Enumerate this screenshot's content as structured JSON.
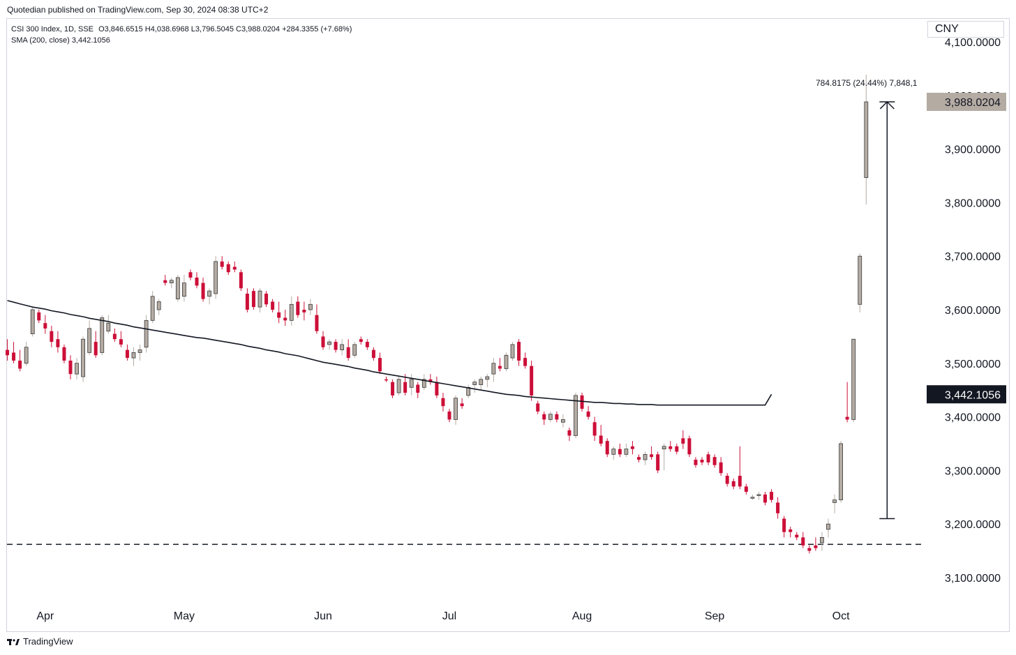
{
  "header": {
    "publisher_line": "Quotedian published on TradingView.com, Sep 30, 2024 08:38 UTC+2",
    "symbol_line": "CSI 300 Index, 1D, SSE",
    "ohlc_line": "O3,846.6515 H4,038.6968 L3,796.5045 C3,988.0204 +284.3355 (+7.68%)",
    "sma_line": "SMA (200, close)  3,442.1056",
    "currency": "CNY"
  },
  "footer": {
    "brand": "TradingView"
  },
  "colors": {
    "up": "#b5aca4",
    "down": "#cc0f38",
    "sma": "#131722",
    "last_price_bg": "#b4aba3",
    "sma_label_bg": "#131722"
  },
  "chart_data": {
    "type": "candlestick",
    "title": "CSI 300 Index, 1D, SSE",
    "y_range": [
      3040,
      4130
    ],
    "y_ticks": [
      {
        "value": 3100,
        "label": "3,100.0000"
      },
      {
        "value": 3200,
        "label": "3,200.0000"
      },
      {
        "value": 3300,
        "label": "3,300.0000"
      },
      {
        "value": 3400,
        "label": "3,400.0000"
      },
      {
        "value": 3500,
        "label": "3,500.0000"
      },
      {
        "value": 3600,
        "label": "3,600.0000"
      },
      {
        "value": 3700,
        "label": "3,700.0000"
      },
      {
        "value": 3800,
        "label": "3,800.0000"
      },
      {
        "value": 3900,
        "label": "3,900.0000"
      },
      {
        "value": 4000,
        "label": "4,000.0000"
      },
      {
        "value": 4100,
        "label": "4,100.0000"
      }
    ],
    "x_month_ticks": [
      {
        "label": "Apr",
        "index": 6
      },
      {
        "label": "May",
        "index": 28
      },
      {
        "label": "Jun",
        "index": 50
      },
      {
        "label": "Jul",
        "index": 70
      },
      {
        "label": "Aug",
        "index": 91
      },
      {
        "label": "Sep",
        "index": 112
      },
      {
        "label": "Oct",
        "index": 132
      }
    ],
    "last_price": {
      "value": 3988.0204,
      "label": "3,988.0204"
    },
    "sma_last": {
      "value": 3442.1056,
      "label": "3,442.1056"
    },
    "measure": {
      "from": 3210,
      "to": 3988,
      "label": "784.8175 (24.44%) 7,848,1"
    },
    "support_level": 3162,
    "sma_values": [
      3617,
      3614,
      3611,
      3608,
      3605,
      3603,
      3601,
      3598,
      3596,
      3594,
      3591,
      3589,
      3587,
      3584,
      3582,
      3580,
      3578,
      3575,
      3573,
      3571,
      3568,
      3566,
      3564,
      3562,
      3560,
      3558,
      3556,
      3554,
      3552,
      3550,
      3548,
      3547,
      3545,
      3543,
      3541,
      3539,
      3537,
      3535,
      3532,
      3530,
      3528,
      3525,
      3523,
      3521,
      3518,
      3516,
      3514,
      3511,
      3508,
      3505,
      3502,
      3500,
      3498,
      3496,
      3494,
      3491,
      3489,
      3487,
      3484,
      3482,
      3480,
      3478,
      3476,
      3474,
      3472,
      3470,
      3468,
      3466,
      3464,
      3462,
      3460,
      3458,
      3456,
      3454,
      3452,
      3450,
      3448,
      3446,
      3444,
      3442,
      3441,
      3440,
      3438,
      3437,
      3436,
      3435,
      3434,
      3433,
      3432,
      3431,
      3430,
      3429,
      3428,
      3427,
      3427,
      3426,
      3425,
      3425,
      3424,
      3424,
      3423,
      3423,
      3423,
      3422,
      3422,
      3422,
      3422,
      3422,
      3422,
      3422,
      3422,
      3422,
      3422,
      3422,
      3422,
      3422,
      3422,
      3422,
      3422,
      3422,
      3422,
      3442
    ],
    "candles": [
      [
        3525,
        3545,
        3505,
        3515
      ],
      [
        3520,
        3540,
        3500,
        3505
      ],
      [
        3505,
        3525,
        3485,
        3490
      ],
      [
        3500,
        3540,
        3495,
        3530
      ],
      [
        3555,
        3605,
        3550,
        3600
      ],
      [
        3595,
        3600,
        3575,
        3580
      ],
      [
        3575,
        3590,
        3555,
        3565
      ],
      [
        3560,
        3570,
        3530,
        3540
      ],
      [
        3545,
        3560,
        3520,
        3530
      ],
      [
        3530,
        3535,
        3500,
        3505
      ],
      [
        3505,
        3515,
        3470,
        3480
      ],
      [
        3480,
        3510,
        3470,
        3500
      ],
      [
        3475,
        3550,
        3465,
        3545
      ],
      [
        3520,
        3580,
        3515,
        3565
      ],
      [
        3540,
        3560,
        3510,
        3515
      ],
      [
        3520,
        3590,
        3515,
        3585
      ],
      [
        3560,
        3590,
        3555,
        3575
      ],
      [
        3555,
        3565,
        3540,
        3545
      ],
      [
        3545,
        3560,
        3530,
        3535
      ],
      [
        3525,
        3535,
        3505,
        3510
      ],
      [
        3510,
        3530,
        3495,
        3520
      ],
      [
        3520,
        3535,
        3505,
        3525
      ],
      [
        3530,
        3590,
        3520,
        3580
      ],
      [
        3580,
        3635,
        3575,
        3625
      ],
      [
        3600,
        3620,
        3590,
        3615
      ],
      [
        3655,
        3665,
        3645,
        3650
      ],
      [
        3650,
        3660,
        3640,
        3655
      ],
      [
        3620,
        3665,
        3615,
        3660
      ],
      [
        3625,
        3665,
        3615,
        3650
      ],
      [
        3670,
        3675,
        3655,
        3660
      ],
      [
        3660,
        3670,
        3640,
        3645
      ],
      [
        3650,
        3660,
        3615,
        3620
      ],
      [
        3625,
        3640,
        3610,
        3635
      ],
      [
        3630,
        3700,
        3620,
        3690
      ],
      [
        3690,
        3700,
        3675,
        3680
      ],
      [
        3685,
        3690,
        3665,
        3670
      ],
      [
        3680,
        3690,
        3670,
        3675
      ],
      [
        3670,
        3675,
        3635,
        3640
      ],
      [
        3630,
        3640,
        3595,
        3600
      ],
      [
        3635,
        3640,
        3600,
        3605
      ],
      [
        3605,
        3640,
        3595,
        3635
      ],
      [
        3630,
        3635,
        3605,
        3610
      ],
      [
        3615,
        3620,
        3595,
        3600
      ],
      [
        3595,
        3615,
        3575,
        3585
      ],
      [
        3585,
        3600,
        3570,
        3580
      ],
      [
        3580,
        3625,
        3570,
        3610
      ],
      [
        3615,
        3625,
        3585,
        3590
      ],
      [
        3600,
        3615,
        3580,
        3595
      ],
      [
        3600,
        3620,
        3590,
        3610
      ],
      [
        3590,
        3610,
        3555,
        3560
      ],
      [
        3550,
        3560,
        3525,
        3530
      ],
      [
        3535,
        3545,
        3525,
        3540
      ],
      [
        3540,
        3545,
        3520,
        3525
      ],
      [
        3525,
        3545,
        3515,
        3535
      ],
      [
        3530,
        3545,
        3505,
        3510
      ],
      [
        3515,
        3540,
        3510,
        3535
      ],
      [
        3545,
        3550,
        3535,
        3540
      ],
      [
        3540,
        3545,
        3525,
        3530
      ],
      [
        3525,
        3530,
        3505,
        3510
      ],
      [
        3510,
        3520,
        3480,
        3485
      ],
      [
        3470,
        3475,
        3465,
        3468
      ],
      [
        3465,
        3470,
        3435,
        3440
      ],
      [
        3445,
        3475,
        3440,
        3470
      ],
      [
        3465,
        3480,
        3440,
        3445
      ],
      [
        3455,
        3480,
        3440,
        3470
      ],
      [
        3460,
        3465,
        3435,
        3445
      ],
      [
        3455,
        3480,
        3450,
        3470
      ],
      [
        3470,
        3480,
        3460,
        3465
      ],
      [
        3465,
        3475,
        3435,
        3440
      ],
      [
        3435,
        3445,
        3410,
        3420
      ],
      [
        3410,
        3415,
        3390,
        3395
      ],
      [
        3395,
        3440,
        3385,
        3435
      ],
      [
        3425,
        3435,
        3415,
        3420
      ],
      [
        3440,
        3460,
        3435,
        3455
      ],
      [
        3460,
        3470,
        3445,
        3465
      ],
      [
        3460,
        3475,
        3450,
        3470
      ],
      [
        3470,
        3480,
        3455,
        3475
      ],
      [
        3480,
        3510,
        3465,
        3500
      ],
      [
        3495,
        3510,
        3485,
        3490
      ],
      [
        3490,
        3520,
        3485,
        3515
      ],
      [
        3510,
        3540,
        3505,
        3535
      ],
      [
        3540,
        3545,
        3495,
        3505
      ],
      [
        3510,
        3520,
        3490,
        3495
      ],
      [
        3495,
        3505,
        3430,
        3440
      ],
      [
        3425,
        3430,
        3405,
        3410
      ],
      [
        3405,
        3410,
        3385,
        3395
      ],
      [
        3395,
        3410,
        3390,
        3405
      ],
      [
        3405,
        3410,
        3390,
        3395
      ],
      [
        3390,
        3405,
        3380,
        3395
      ],
      [
        3375,
        3380,
        3355,
        3365
      ],
      [
        3365,
        3445,
        3360,
        3440
      ],
      [
        3440,
        3445,
        3410,
        3415
      ],
      [
        3410,
        3420,
        3395,
        3400
      ],
      [
        3390,
        3400,
        3355,
        3365
      ],
      [
        3365,
        3385,
        3345,
        3350
      ],
      [
        3355,
        3360,
        3325,
        3330
      ],
      [
        3330,
        3345,
        3320,
        3340
      ],
      [
        3340,
        3350,
        3325,
        3330
      ],
      [
        3330,
        3350,
        3325,
        3340
      ],
      [
        3345,
        3355,
        3330,
        3340
      ],
      [
        3325,
        3330,
        3315,
        3320
      ],
      [
        3320,
        3335,
        3310,
        3330
      ],
      [
        3330,
        3345,
        3320,
        3325
      ],
      [
        3330,
        3335,
        3295,
        3300
      ],
      [
        3340,
        3350,
        3300,
        3345
      ],
      [
        3345,
        3355,
        3335,
        3340
      ],
      [
        3345,
        3350,
        3330,
        3335
      ],
      [
        3360,
        3375,
        3340,
        3350
      ],
      [
        3360,
        3365,
        3325,
        3330
      ],
      [
        3320,
        3325,
        3305,
        3310
      ],
      [
        3320,
        3325,
        3310,
        3315
      ],
      [
        3330,
        3335,
        3310,
        3315
      ],
      [
        3325,
        3330,
        3305,
        3310
      ],
      [
        3315,
        3325,
        3290,
        3295
      ],
      [
        3290,
        3295,
        3270,
        3275
      ],
      [
        3280,
        3285,
        3265,
        3270
      ],
      [
        3290,
        3345,
        3265,
        3270
      ],
      [
        3270,
        3275,
        3255,
        3260
      ],
      [
        3250,
        3255,
        3245,
        3250
      ],
      [
        3255,
        3260,
        3245,
        3255
      ],
      [
        3255,
        3260,
        3235,
        3240
      ],
      [
        3260,
        3265,
        3240,
        3245
      ],
      [
        3240,
        3250,
        3210,
        3220
      ],
      [
        3210,
        3215,
        3175,
        3185
      ],
      [
        3190,
        3195,
        3175,
        3185
      ],
      [
        3180,
        3185,
        3170,
        3175
      ],
      [
        3175,
        3185,
        3155,
        3160
      ],
      [
        3155,
        3160,
        3145,
        3150
      ],
      [
        3160,
        3175,
        3150,
        3155
      ],
      [
        3165,
        3185,
        3150,
        3175
      ],
      [
        3190,
        3210,
        3175,
        3200
      ],
      [
        3240,
        3255,
        3220,
        3245
      ],
      [
        3245,
        3355,
        3240,
        3350
      ],
      [
        3400,
        3465,
        3390,
        3395
      ],
      [
        3395,
        3545,
        3390,
        3545
      ],
      [
        3610,
        3705,
        3595,
        3700
      ],
      [
        3846.6515,
        4038.6968,
        3796.5045,
        3988.0204
      ]
    ]
  }
}
